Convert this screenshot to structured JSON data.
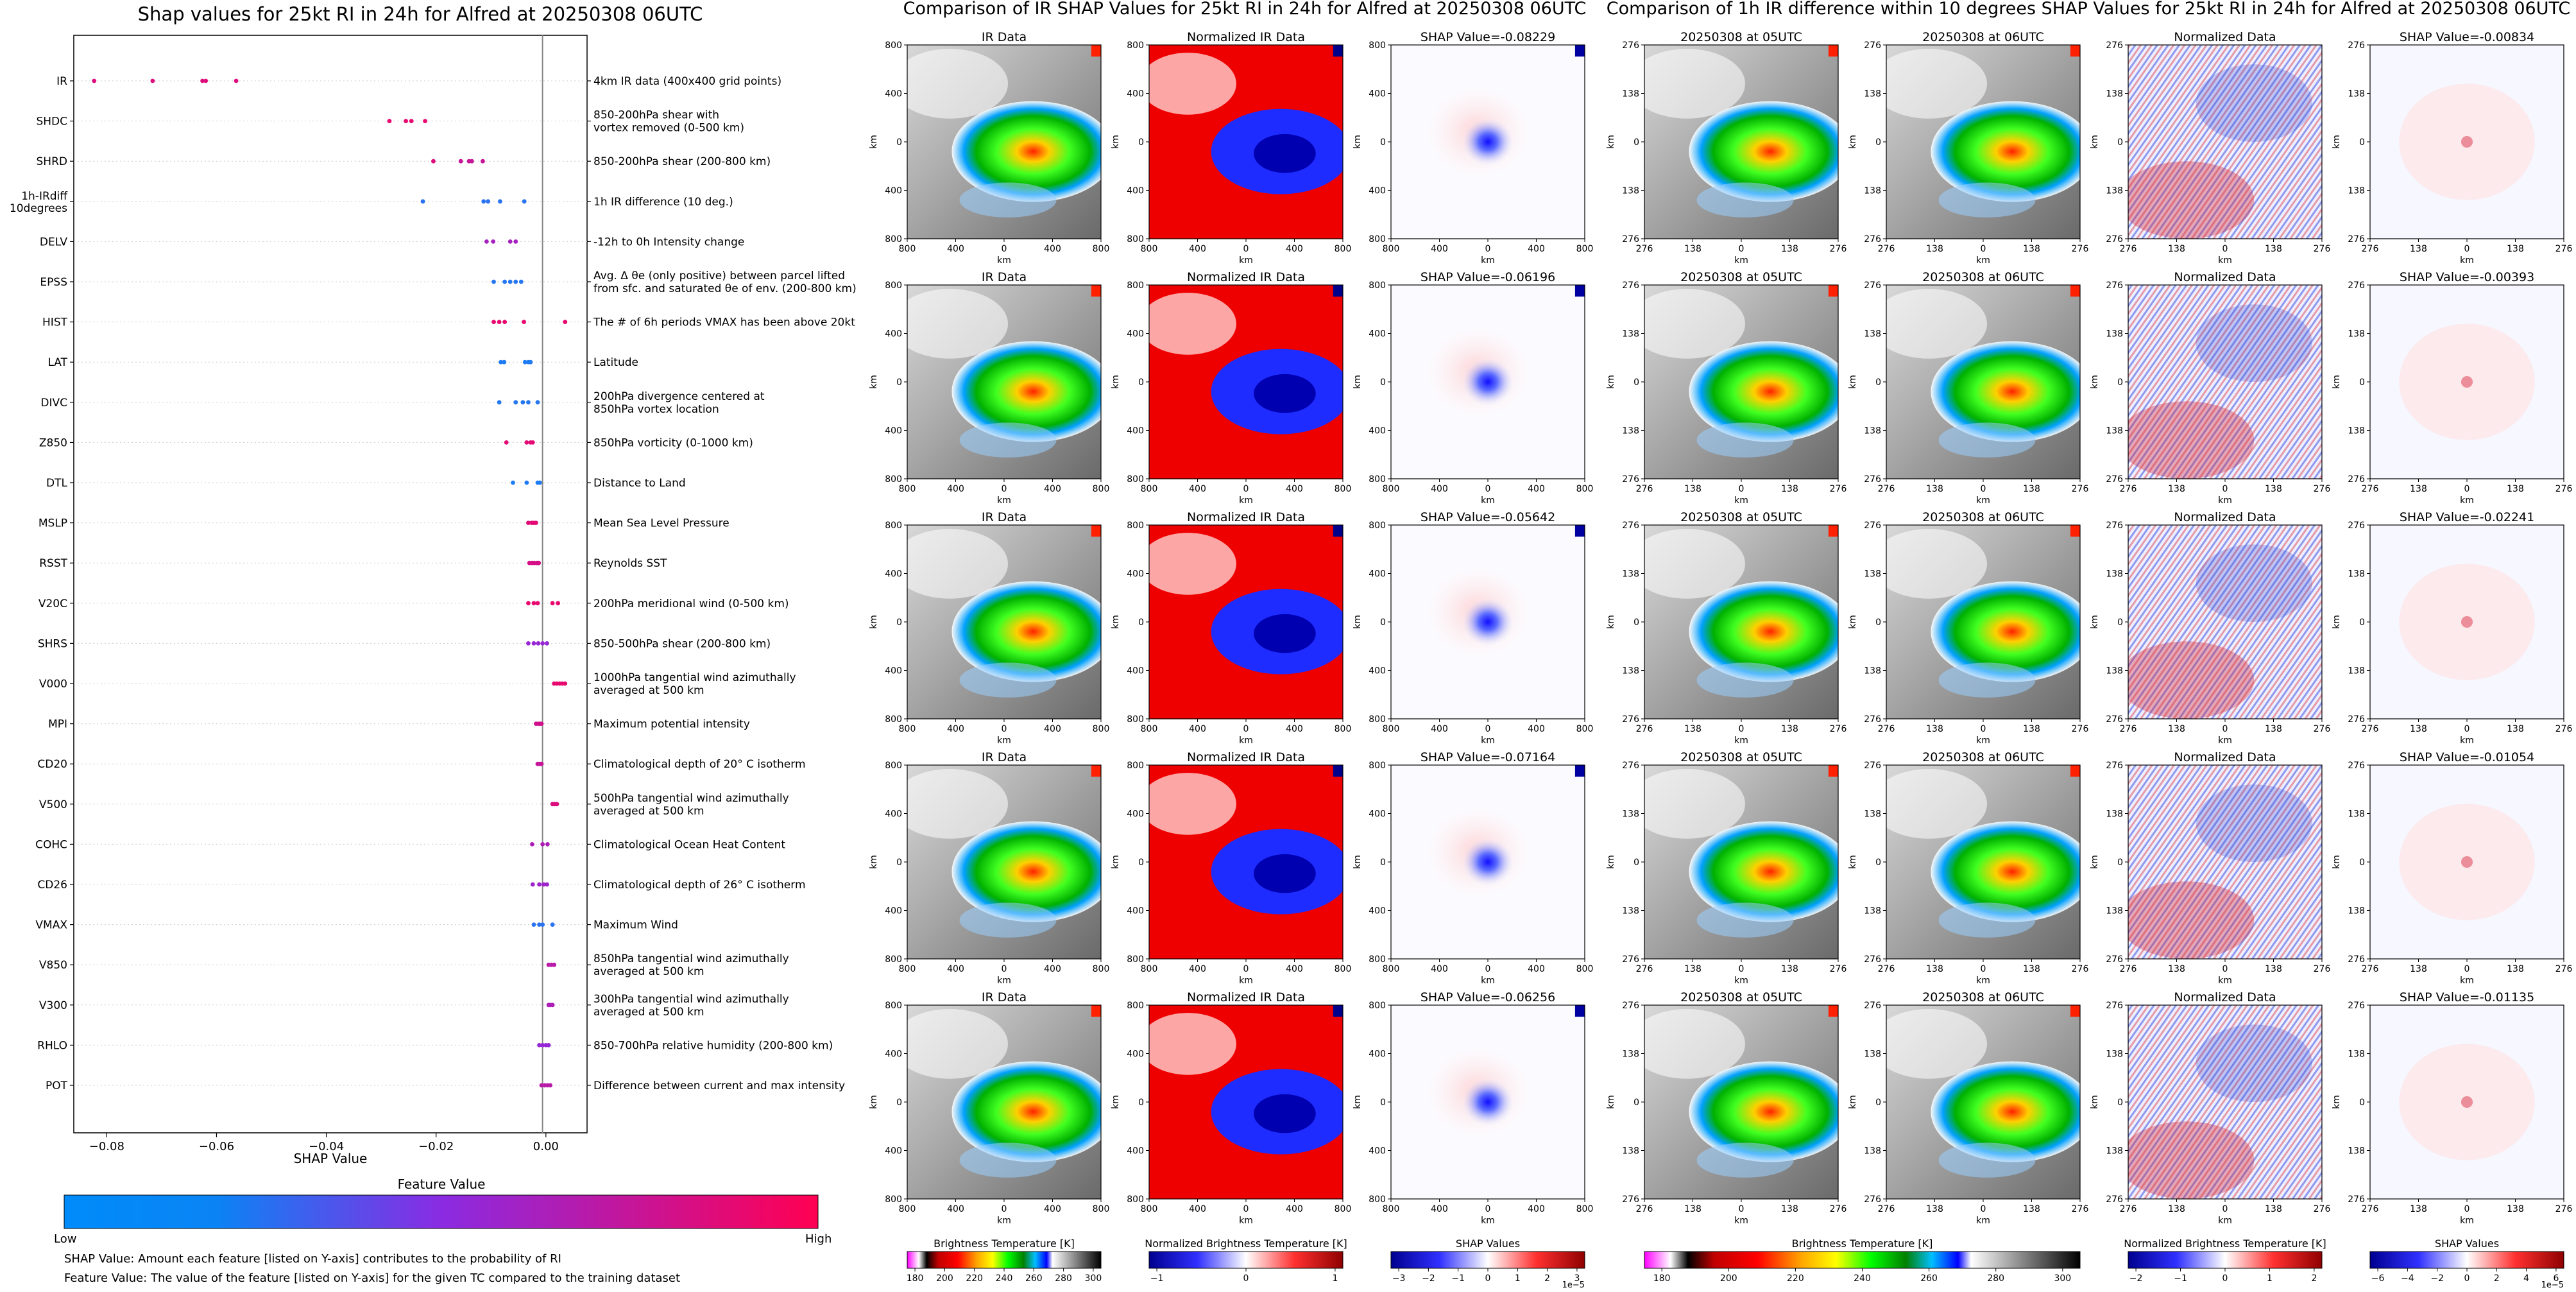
{
  "shap_panel": {
    "title": "Shap values for 25kt RI in 24h for Alfred at 20250308 06UTC",
    "xlabel": "SHAP Value",
    "xticks": [
      "−0.08",
      "−0.06",
      "−0.04",
      "−0.02",
      "0.00"
    ],
    "colorbar_title": "Feature Value",
    "colorbar_low": "Low",
    "colorbar_high": "High",
    "note1": "SHAP Value: Amount each feature [listed on Y-axis] contributes to the probability of RI",
    "note2": "Feature Value: The value of the feature [listed on Y-axis] for the given TC compared to the training dataset"
  },
  "ir_panel": {
    "title": "Comparison of IR SHAP Values for 25kt RI in 24h for Alfred at 20250308 06UTC",
    "col_titles": [
      "IR Data",
      "Normalized IR Data"
    ],
    "shap_titles": [
      "SHAP Value=-0.08229",
      "SHAP Value=-0.06196",
      "SHAP Value=-0.05642",
      "SHAP Value=-0.07164",
      "SHAP Value=-0.06256"
    ],
    "xticks": [
      "800",
      "400",
      "0",
      "400",
      "800"
    ],
    "yticks": [
      "800",
      "400",
      "0",
      "400",
      "800"
    ],
    "axis_label": "km",
    "cbars": [
      {
        "label": "Brightness Temperature [K]",
        "ticks": [
          "180",
          "200",
          "220",
          "240",
          "260",
          "280",
          "300"
        ],
        "offset": ""
      },
      {
        "label": "Normalized Brightness Temperature [K]",
        "ticks": [
          "−1",
          "0",
          "1"
        ],
        "offset": ""
      },
      {
        "label": "SHAP Values",
        "ticks": [
          "−3",
          "−2",
          "−1",
          "0",
          "1",
          "2",
          "3"
        ],
        "offset": "1e−5"
      }
    ]
  },
  "diff_panel": {
    "title": "Comparison of 1h IR difference within 10 degrees SHAP Values for 25kt RI in 24h for Alfred at 20250308 06UTC",
    "col_titles": [
      "20250308 at 05UTC",
      "20250308 at 06UTC",
      "Normalized Data"
    ],
    "shap_titles": [
      "SHAP Value=-0.00834",
      "SHAP Value=-0.00393",
      "SHAP Value=-0.02241",
      "SHAP Value=-0.01054",
      "SHAP Value=-0.01135"
    ],
    "xticks": [
      "276",
      "138",
      "0",
      "138",
      "276"
    ],
    "yticks": [
      "276",
      "138",
      "0",
      "138",
      "276"
    ],
    "axis_label": "km",
    "cbars": [
      {
        "label": "Brightness Temperature [K]",
        "ticks": [
          "180",
          "200",
          "220",
          "240",
          "260",
          "280",
          "300"
        ],
        "offset": ""
      },
      {
        "label": "Normalized Brightness Temperature [K]",
        "ticks": [
          "−2",
          "−1",
          "0",
          "1",
          "2"
        ],
        "offset": ""
      },
      {
        "label": "SHAP Values",
        "ticks": [
          "−6",
          "−4",
          "−2",
          "0",
          "2",
          "4",
          "6"
        ],
        "offset": "1e−5"
      }
    ]
  },
  "chart_data": [
    {
      "type": "scatter",
      "title": "Shap values for 25kt RI in 24h for Alfred at 20250308 06UTC",
      "xlabel": "SHAP Value",
      "xlim": [
        -0.086,
        0.0075
      ],
      "xticks": [
        -0.08,
        -0.06,
        -0.04,
        -0.02,
        0.0
      ],
      "features": [
        {
          "name": "IR",
          "desc": "4km IR data (400x400 grid points)",
          "shap": [
            -0.08229,
            -0.07164,
            -0.06256,
            -0.06196,
            -0.05642
          ],
          "fv": [
            0.85,
            0.85,
            0.85,
            0.85,
            0.85
          ]
        },
        {
          "name": "SHDC",
          "desc": "850-200hPa shear with\nvortex removed (0-500 km)",
          "shap": [
            -0.0285,
            -0.0255,
            -0.0245,
            -0.022
          ],
          "fv": [
            0.9,
            0.9,
            0.9,
            0.9
          ]
        },
        {
          "name": "SHRD",
          "desc": "850-200hPa shear (200-800 km)",
          "shap": [
            -0.0205,
            -0.0155,
            -0.014,
            -0.0135,
            -0.0115
          ],
          "fv": [
            0.85,
            0.75,
            0.75,
            0.75,
            0.75
          ]
        },
        {
          "name": "1h-IRdiff\n10degrees",
          "desc": "1h IR difference (10 deg.)",
          "shap": [
            -0.02241,
            -0.01135,
            -0.01054,
            -0.00834,
            -0.00393
          ],
          "fv": [
            0.12,
            0.12,
            0.12,
            0.12,
            0.12
          ]
        },
        {
          "name": "DELV",
          "desc": "-12h to 0h Intensity change",
          "shap": [
            -0.0108,
            -0.0096,
            -0.0065,
            -0.0055
          ],
          "fv": [
            0.62,
            0.62,
            0.62,
            0.62
          ]
        },
        {
          "name": "EPSS",
          "desc": "Avg. Δ θe (only positive) between parcel lifted\nfrom sfc. and saturated θe of env. (200-800 km)",
          "shap": [
            -0.0095,
            -0.0075,
            -0.0065,
            -0.0055,
            -0.0045
          ],
          "fv": [
            0.1,
            0.1,
            0.1,
            0.1,
            0.1
          ]
        },
        {
          "name": "HIST",
          "desc": "The # of 6h periods VMAX has been above 20kt",
          "shap": [
            -0.0095,
            -0.0085,
            -0.0075,
            -0.004,
            0.0035
          ],
          "fv": [
            0.9,
            0.9,
            0.9,
            0.9,
            0.9
          ]
        },
        {
          "name": "LAT",
          "desc": "Latitude",
          "shap": [
            -0.0082,
            -0.0076,
            -0.0038,
            -0.0032,
            -0.0028
          ],
          "fv": [
            0.08,
            0.08,
            0.08,
            0.08,
            0.08
          ]
        },
        {
          "name": "DIVC",
          "desc": "200hPa divergence centered at\n850hPa vortex location",
          "shap": [
            -0.0085,
            -0.0055,
            -0.0042,
            -0.0032,
            -0.0015
          ],
          "fv": [
            0.1,
            0.1,
            0.1,
            0.1,
            0.1
          ]
        },
        {
          "name": "Z850",
          "desc": "850hPa vorticity (0-1000 km)",
          "shap": [
            -0.0072,
            -0.0035,
            -0.0028,
            -0.0024
          ],
          "fv": [
            0.88,
            0.88,
            0.88,
            0.88
          ]
        },
        {
          "name": "DTL",
          "desc": "Distance to Land",
          "shap": [
            -0.006,
            -0.0035,
            -0.0015,
            -0.0011
          ],
          "fv": [
            0.08,
            0.08,
            0.08,
            0.08
          ]
        },
        {
          "name": "MSLP",
          "desc": "Mean Sea Level Pressure",
          "shap": [
            -0.0032,
            -0.0026,
            -0.0022,
            -0.0018
          ],
          "fv": [
            0.88,
            0.88,
            0.88,
            0.88
          ]
        },
        {
          "name": "RSST",
          "desc": "Reynolds SST",
          "shap": [
            -0.003,
            -0.0025,
            -0.0021,
            -0.0016,
            -0.0013
          ],
          "fv": [
            0.82,
            0.82,
            0.82,
            0.82,
            0.82
          ]
        },
        {
          "name": "V20C",
          "desc": "200hPa meridional wind (0-500 km)",
          "shap": [
            -0.0032,
            -0.0022,
            -0.0015,
            0.0012,
            0.0022
          ],
          "fv": [
            0.9,
            0.9,
            0.9,
            0.9,
            0.9
          ]
        },
        {
          "name": "SHRS",
          "desc": "850-500hPa shear (200-800 km)",
          "shap": [
            -0.0032,
            -0.0022,
            -0.0014,
            -0.0006,
            0.0002
          ],
          "fv": [
            0.55,
            0.55,
            0.55,
            0.55,
            0.55
          ]
        },
        {
          "name": "V000",
          "desc": "1000hPa tangential wind azimuthally\naveraged at 500 km",
          "shap": [
            0.0015,
            0.002,
            0.0025,
            0.003,
            0.0035
          ],
          "fv": [
            0.9,
            0.9,
            0.9,
            0.9,
            0.9
          ]
        },
        {
          "name": "MPI",
          "desc": "Maximum potential intensity",
          "shap": [
            -0.0018,
            -0.0014,
            -0.0011,
            -0.0008
          ],
          "fv": [
            0.8,
            0.8,
            0.8,
            0.8
          ]
        },
        {
          "name": "CD20",
          "desc": "Climatological depth of 20° C isotherm",
          "shap": [
            -0.0015,
            -0.0011,
            -0.0008
          ],
          "fv": [
            0.75,
            0.75,
            0.75
          ]
        },
        {
          "name": "V500",
          "desc": "500hPa tangential wind azimuthally\naveraged at 500 km",
          "shap": [
            0.0012,
            0.0016,
            0.002
          ],
          "fv": [
            0.85,
            0.85,
            0.85
          ]
        },
        {
          "name": "COHC",
          "desc": "Climatological Ocean Heat Content",
          "shap": [
            -0.0025,
            -0.0006,
            0.0003
          ],
          "fv": [
            0.65,
            0.65,
            0.65
          ]
        },
        {
          "name": "CD26",
          "desc": "Climatological depth of 26° C isotherm",
          "shap": [
            -0.0024,
            -0.0012,
            -0.0004,
            0.0002
          ],
          "fv": [
            0.58,
            0.58,
            0.58,
            0.58
          ]
        },
        {
          "name": "VMAX",
          "desc": "Maximum Wind",
          "shap": [
            -0.0022,
            -0.0012,
            -0.0006,
            0.0012
          ],
          "fv": [
            0.12,
            0.12,
            0.12,
            0.12
          ]
        },
        {
          "name": "V850",
          "desc": "850hPa tangential wind azimuthally\naveraged at 500 km",
          "shap": [
            0.0005,
            0.001,
            0.0015
          ],
          "fv": [
            0.7,
            0.7,
            0.7
          ]
        },
        {
          "name": "V300",
          "desc": "300hPa tangential wind azimuthally\naveraged at 500 km",
          "shap": [
            0.0005,
            0.0008,
            0.0012
          ],
          "fv": [
            0.65,
            0.65,
            0.65
          ]
        },
        {
          "name": "RHLO",
          "desc": "850-700hPa relative humidity (200-800 km)",
          "shap": [
            -0.0012,
            -0.0006,
            0.0,
            0.0005
          ],
          "fv": [
            0.55,
            0.55,
            0.55,
            0.55
          ]
        },
        {
          "name": "POT",
          "desc": "Difference between current and max intensity",
          "shap": [
            -0.0008,
            -0.0002,
            0.0003,
            0.0008
          ],
          "fv": [
            0.7,
            0.7,
            0.7,
            0.7
          ]
        }
      ]
    }
  ],
  "colors": {
    "low": "#1e88e5",
    "mid": "#8a2be2",
    "high": "#ff0052",
    "zero_line": "#888888",
    "neg": "#0000c8",
    "pos": "#c80000"
  }
}
